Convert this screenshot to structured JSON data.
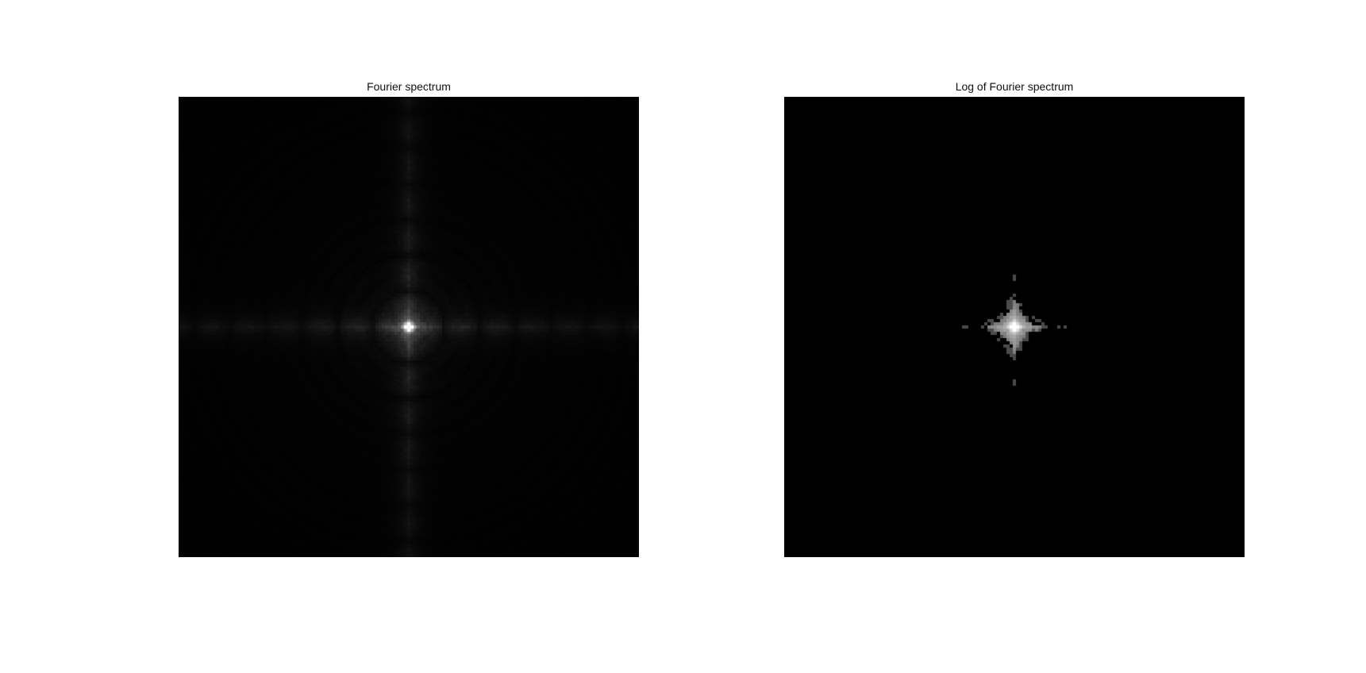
{
  "figure": {
    "panels": [
      {
        "title": "Fourier spectrum",
        "image_description": "fourier-spectrum-magnitude",
        "scale": "linear"
      },
      {
        "title": "Log of Fourier spectrum",
        "image_description": "log-fourier-spectrum-magnitude",
        "scale": "log"
      }
    ]
  }
}
